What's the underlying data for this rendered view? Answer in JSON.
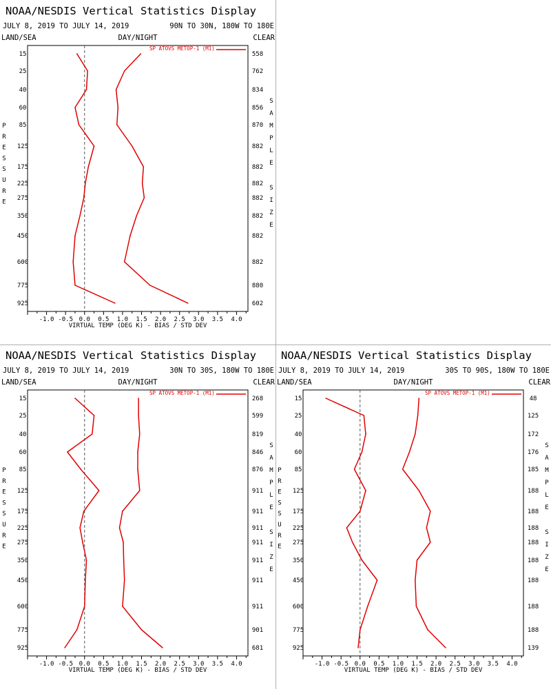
{
  "colors": {
    "series": "#e00000",
    "zero_line": "#555555",
    "axis": "#000000"
  },
  "common": {
    "land_label": "LAND/SEA",
    "day_label": "DAY/NIGHT",
    "clear_label": "CLEAR",
    "left_vertical_label": "PRESSURE",
    "right_vertical_label": "SAMPLESIZE",
    "xlabel": "VIRTUAL TEMP (DEG K) - BIAS / STD DEV",
    "legend": "SP ATOVS METOP-1 (M1)"
  },
  "chart_data": [
    {
      "type": "line",
      "title": "NOAA/NESDIS Vertical Statistics Display",
      "date_range": "JULY 8, 2019 TO JULY 14, 2019",
      "region": "90N TO 30N, 180W TO 180E",
      "pressure_levels": [
        "15",
        "25",
        "40",
        "60",
        "85",
        "125",
        "175",
        "225",
        "275",
        "350",
        "450",
        "600",
        "775",
        "925"
      ],
      "sample_sizes": [
        "558",
        "762",
        "834",
        "856",
        "870",
        "882",
        "882",
        "882",
        "882",
        "882",
        "882",
        "882",
        "880",
        "602"
      ],
      "x_ticks": [
        "-1.0",
        "-0.5",
        "0.0",
        "0.5",
        "1.0",
        "1.5",
        "2.0",
        "2.5",
        "3.0",
        "3.5",
        "4.0"
      ],
      "xlim": [
        -1.5,
        4.3
      ],
      "series": [
        {
          "name": "BIAS",
          "values": [
            -0.2,
            0.08,
            0.05,
            -0.25,
            -0.15,
            0.25,
            0.1,
            0.02,
            -0.02,
            -0.12,
            -0.25,
            -0.3,
            -0.25,
            0.8
          ]
        },
        {
          "name": "STD DEV",
          "values": [
            1.48,
            1.05,
            0.83,
            0.88,
            0.85,
            1.25,
            1.55,
            1.52,
            1.57,
            1.37,
            1.2,
            1.05,
            1.72,
            2.72
          ]
        }
      ]
    },
    {
      "type": "line",
      "title": "NOAA/NESDIS Vertical Statistics Display",
      "date_range": "JULY 8, 2019 TO JULY 14, 2019",
      "region": "30N TO 30S, 180W TO 180E",
      "pressure_levels": [
        "15",
        "25",
        "40",
        "60",
        "85",
        "125",
        "175",
        "225",
        "275",
        "350",
        "450",
        "600",
        "775",
        "925"
      ],
      "sample_sizes": [
        "268",
        "599",
        "819",
        "846",
        "876",
        "911",
        "911",
        "911",
        "911",
        "911",
        "911",
        "911",
        "901",
        "681"
      ],
      "x_ticks": [
        "-1.0",
        "-0.5",
        "0.0",
        "0.5",
        "1.0",
        "1.5",
        "2.0",
        "2.5",
        "3.0",
        "3.5",
        "4.0"
      ],
      "xlim": [
        -1.5,
        4.3
      ],
      "series": [
        {
          "name": "BIAS",
          "values": [
            -0.25,
            0.25,
            0.2,
            -0.45,
            -0.1,
            0.38,
            -0.02,
            -0.12,
            -0.05,
            0.05,
            0.02,
            0.0,
            -0.2,
            -0.52
          ]
        },
        {
          "name": "STD DEV",
          "values": [
            1.42,
            1.42,
            1.45,
            1.4,
            1.4,
            1.45,
            1.0,
            0.92,
            1.02,
            1.03,
            1.05,
            1.0,
            1.5,
            2.05
          ]
        }
      ]
    },
    {
      "type": "line",
      "title": "NOAA/NESDIS Vertical Statistics Display",
      "date_range": "JULY 8, 2019 TO JULY 14, 2019",
      "region": "30S TO 90S, 180W TO 180E",
      "pressure_levels": [
        "15",
        "25",
        "40",
        "60",
        "85",
        "125",
        "175",
        "225",
        "275",
        "350",
        "450",
        "600",
        "775",
        "925"
      ],
      "sample_sizes": [
        "48",
        "125",
        "172",
        "176",
        "185",
        "188",
        "188",
        "188",
        "188",
        "188",
        "188",
        "188",
        "188",
        "139"
      ],
      "x_ticks": [
        "-1.0",
        "-0.5",
        "0.0",
        "0.5",
        "1.0",
        "1.5",
        "2.0",
        "2.5",
        "3.0",
        "3.5",
        "4.0"
      ],
      "xlim": [
        -1.5,
        4.3
      ],
      "series": [
        {
          "name": "BIAS",
          "values": [
            -0.9,
            0.1,
            0.15,
            0.05,
            -0.15,
            0.15,
            0.0,
            -0.35,
            -0.2,
            0.05,
            0.45,
            0.2,
            0.0,
            -0.05
          ]
        },
        {
          "name": "STD DEV",
          "values": [
            1.55,
            1.52,
            1.45,
            1.3,
            1.12,
            1.55,
            1.85,
            1.75,
            1.85,
            1.5,
            1.45,
            1.48,
            1.78,
            2.25
          ]
        }
      ]
    }
  ]
}
